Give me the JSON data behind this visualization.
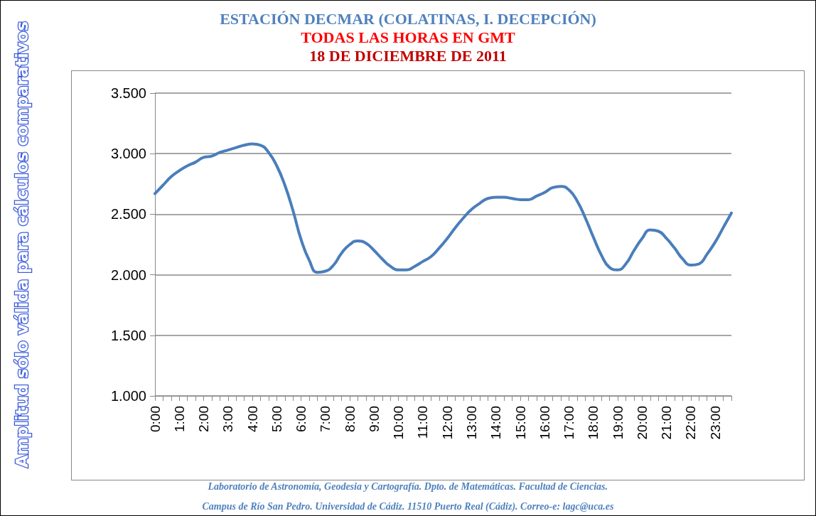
{
  "chart_data": {
    "type": "line",
    "title": "ESTACIÓN DECMAR (COLATINAS, I. DECEPCIÓN)",
    "subtitle": "TODAS LAS HORAS EN GMT",
    "annotations": [
      "18 DE DICIEMBRE DE 2011",
      "Laboratorio de Astronomía, Geodesia y Cartografía. Dpto. de Matemáticas. Facultad de Ciencias.",
      "Campus de Río San Pedro. Universidad de Cádiz. 11510 Puerto Real (Cádiz). Correo-e: lagc@uca.es"
    ],
    "ylabel": "Amplitud sólo válida para cálculos comparativos",
    "categories": [
      "0:00",
      null,
      null,
      "1:00",
      null,
      null,
      "2:00",
      null,
      null,
      "3:00",
      null,
      null,
      "4:00",
      null,
      null,
      "5:00",
      null,
      null,
      "6:00",
      null,
      null,
      "7:00",
      null,
      null,
      "8:00",
      null,
      null,
      "9:00",
      null,
      null,
      "10:00",
      null,
      null,
      "11:00",
      null,
      null,
      "12:00",
      null,
      null,
      "13:00",
      null,
      null,
      "14:00",
      null,
      null,
      "15:00",
      null,
      null,
      "16:00",
      null,
      null,
      "17:00",
      null,
      null,
      "18:00",
      null,
      null,
      "19:00",
      null,
      null,
      "20:00",
      null,
      null,
      "21:00",
      null,
      null,
      "22:00",
      null,
      null,
      "23:00",
      null,
      null
    ],
    "series": [
      {
        "color": "#4a7ebb",
        "values": [
          2.67,
          2.74,
          2.81,
          2.86,
          2.9,
          2.93,
          2.97,
          2.98,
          3.01,
          3.03,
          3.05,
          3.07,
          3.08,
          3.07,
          3.01,
          2.9,
          2.74,
          2.53,
          2.29,
          2.12,
          2.02,
          2.03,
          2.08,
          2.18,
          2.25,
          2.28,
          2.26,
          2.2,
          2.13,
          2.07,
          2.04,
          2.04,
          2.07,
          2.11,
          2.15,
          2.22,
          2.3,
          2.39,
          2.47,
          2.54,
          2.59,
          2.63,
          2.64,
          2.64,
          2.63,
          2.62,
          2.62,
          2.65,
          2.68,
          2.72,
          2.73,
          2.7,
          2.61,
          2.47,
          2.31,
          2.16,
          2.06,
          2.04,
          2.09,
          2.2,
          2.3,
          2.37,
          2.36,
          2.3,
          2.22,
          2.13,
          2.08,
          2.09,
          2.17,
          2.27,
          2.39,
          2.51
        ]
      }
    ],
    "ylim": [
      1,
      3.5
    ],
    "yticks": [
      {
        "value": 1,
        "label": "1.000"
      },
      {
        "value": 1.5,
        "label": "1.500"
      },
      {
        "value": 2,
        "label": "2.000"
      },
      {
        "value": 2.5,
        "label": "2.500"
      },
      {
        "value": 3,
        "label": "3.000"
      },
      {
        "value": 3.5,
        "label": "3.500"
      }
    ],
    "grid": "y",
    "marker": "none",
    "line_style": "solid"
  }
}
